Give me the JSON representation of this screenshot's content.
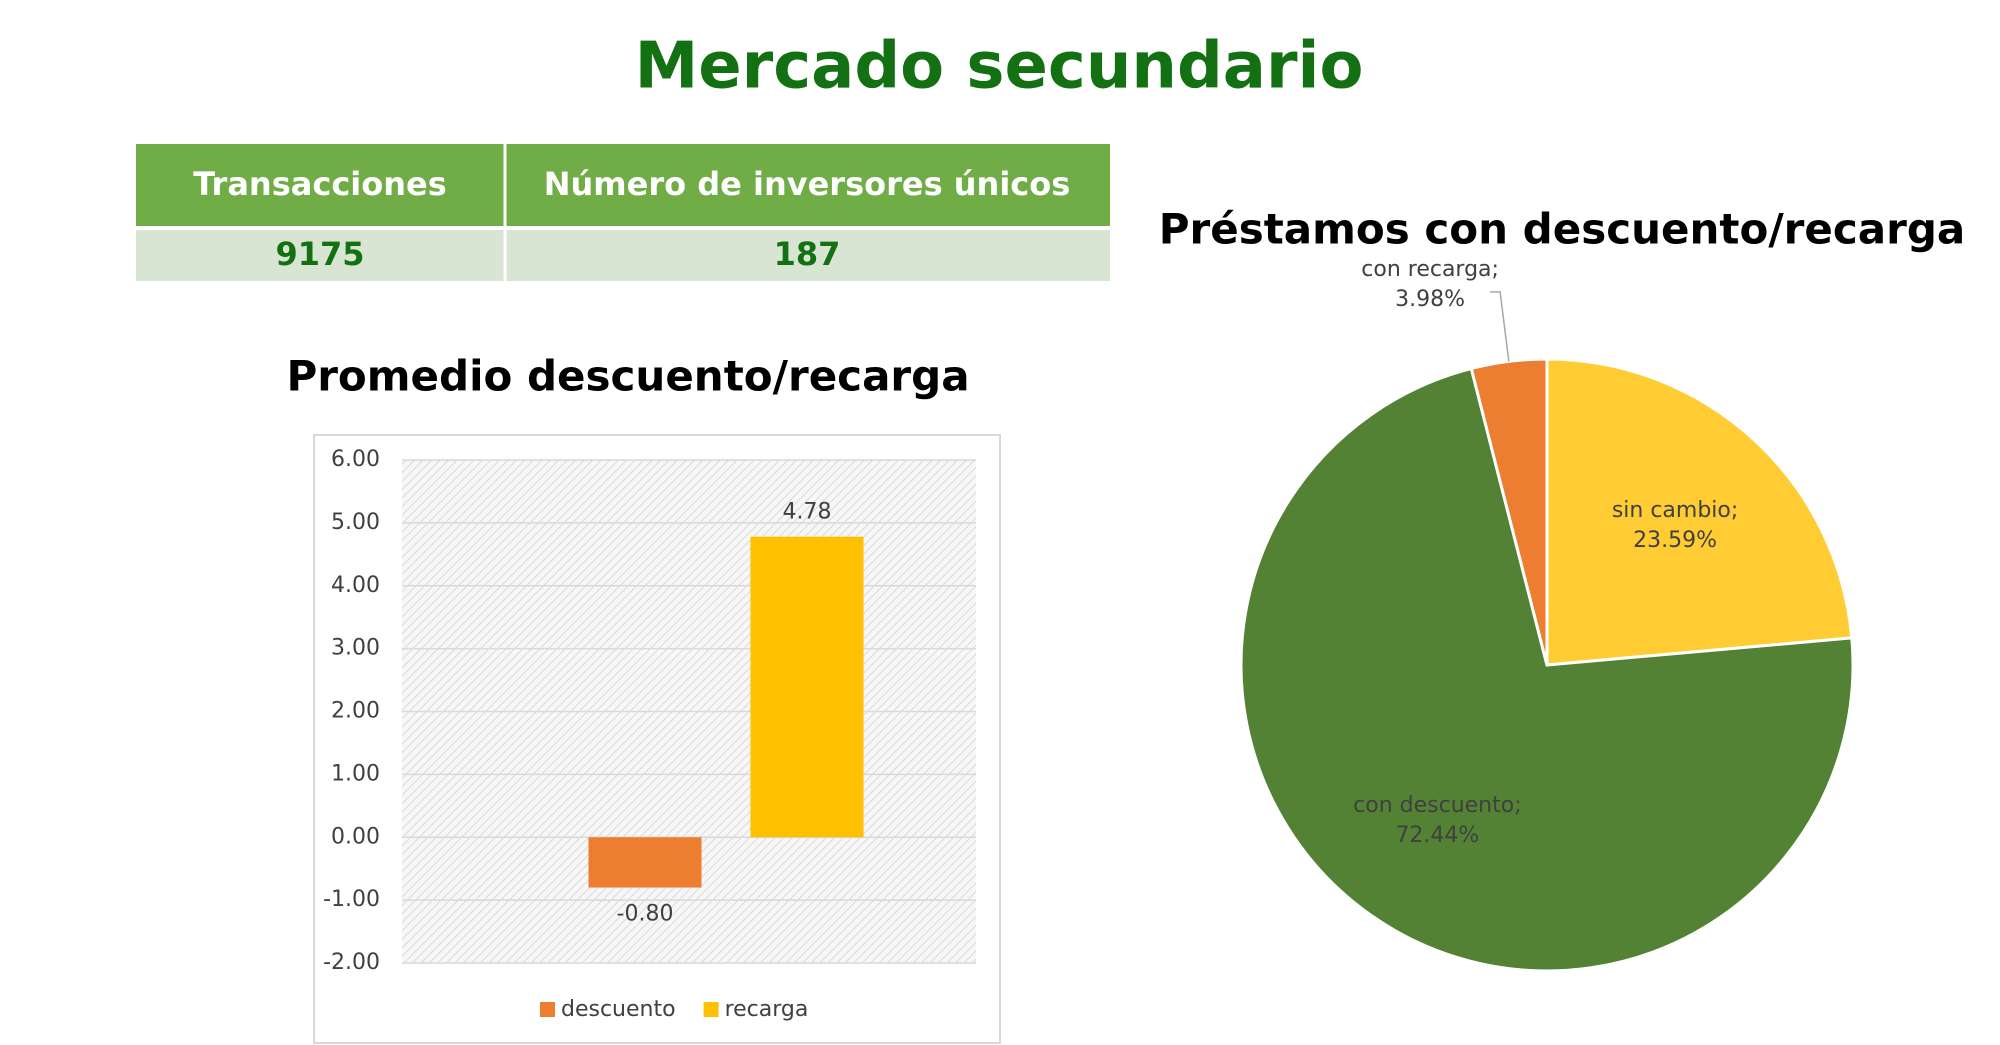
{
  "title": "Mercado secundario",
  "table": {
    "headers": [
      "Transacciones",
      "Número de inversores únicos"
    ],
    "rows": [
      [
        "9175",
        "187"
      ]
    ]
  },
  "chart_data": [
    {
      "type": "bar",
      "title": "Promedio descuento/recarga",
      "categories": [
        null
      ],
      "series": [
        {
          "name": "descuento",
          "color": "#ed7d31",
          "values": [
            -0.8
          ],
          "value_labels": [
            "-0.80"
          ]
        },
        {
          "name": "recarga",
          "color": "#ffc000",
          "values": [
            4.78
          ],
          "value_labels": [
            "4.78"
          ]
        }
      ],
      "ylim": [
        -2,
        6
      ],
      "yticks": [
        {
          "value": -2,
          "label": "-2.00"
        },
        {
          "value": -1,
          "label": "-1.00"
        },
        {
          "value": 0,
          "label": "0.00"
        },
        {
          "value": 1,
          "label": "1.00"
        },
        {
          "value": 2,
          "label": "2.00"
        },
        {
          "value": 3,
          "label": "3.00"
        },
        {
          "value": 4,
          "label": "4.00"
        },
        {
          "value": 5,
          "label": "5.00"
        },
        {
          "value": 6,
          "label": "6.00"
        }
      ],
      "grid": true,
      "legend": "bottom"
    },
    {
      "type": "pie",
      "title": "Préstamos con descuento/recarga",
      "categories": [
        "sin cambio;",
        "con descuento;",
        "con recarga;"
      ],
      "values": [
        23.59,
        72.44,
        3.98
      ],
      "value_labels": [
        "23.59%",
        "72.44%",
        "3.98%"
      ],
      "colors": [
        "#ffcd33",
        "#548235",
        "#ed7d31"
      ]
    }
  ]
}
